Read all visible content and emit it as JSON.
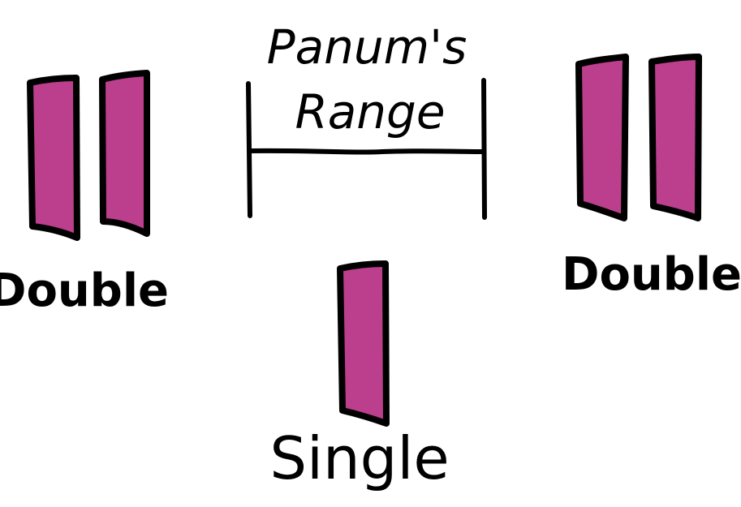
{
  "colors": {
    "bar_fill": "#BB3F8C",
    "stroke": "#000000",
    "background": "#FFFFFF"
  },
  "range": {
    "title_line1": "Panum's",
    "title_line2": "Range"
  },
  "labels": {
    "left": "Double",
    "right": "Double",
    "center": "Single"
  }
}
